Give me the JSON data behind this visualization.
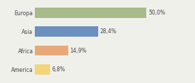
{
  "categories": [
    "Europa",
    "Asia",
    "Africa",
    "America"
  ],
  "values": [
    50.0,
    28.4,
    14.9,
    6.8
  ],
  "labels": [
    "50,0%",
    "28,4%",
    "14,9%",
    "6,8%"
  ],
  "bar_colors": [
    "#a8bb8a",
    "#6b8fbe",
    "#e8a97a",
    "#f5d57a"
  ],
  "background_color": "#f0f0eb",
  "xlim": [
    0,
    70
  ],
  "bar_height": 0.55,
  "label_fontsize": 5.5,
  "tick_fontsize": 5.5
}
